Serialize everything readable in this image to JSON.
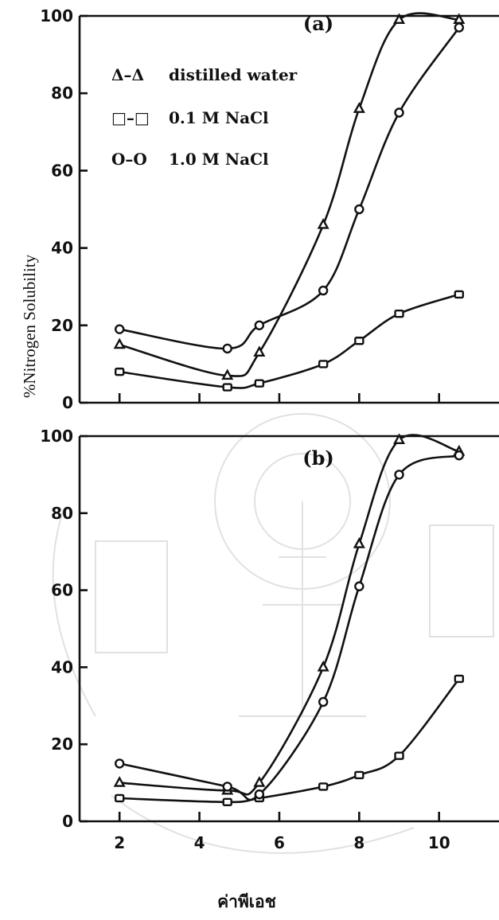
{
  "figure": {
    "ylabel": "%Nitrogen Solubility",
    "xlabel": "ค่าพีเอช"
  },
  "legend": [
    {
      "symbol": "Δ–Δ",
      "label": "distilled water",
      "marker": "triangle"
    },
    {
      "symbol": "□–□",
      "label": "0.1 M NaCl",
      "marker": "square"
    },
    {
      "symbol": "O–O",
      "label": "1.0 M NaCl",
      "marker": "circle"
    }
  ],
  "chart_data": [
    {
      "type": "line",
      "panel": "(a)",
      "xlim": [
        1,
        11.5
      ],
      "ylim": [
        0,
        100
      ],
      "yticks": [
        "0",
        "20",
        "40",
        "60",
        "80",
        "100"
      ],
      "xticks": [
        2,
        4,
        6,
        8,
        10
      ],
      "series": [
        {
          "name": "distilled water",
          "marker": "triangle",
          "points": [
            [
              2,
              15
            ],
            [
              4.7,
              7
            ],
            [
              5.5,
              13
            ],
            [
              7.1,
              46
            ],
            [
              8,
              76
            ],
            [
              9,
              99
            ],
            [
              10.5,
              99
            ]
          ]
        },
        {
          "name": "0.1 M NaCl",
          "marker": "square",
          "points": [
            [
              2,
              8
            ],
            [
              4.7,
              4
            ],
            [
              5.5,
              5
            ],
            [
              7.1,
              10
            ],
            [
              8,
              16
            ],
            [
              9,
              23
            ],
            [
              10.5,
              28
            ]
          ]
        },
        {
          "name": "1.0 M NaCl",
          "marker": "circle",
          "points": [
            [
              2,
              19
            ],
            [
              4.7,
              14
            ],
            [
              5.5,
              20
            ],
            [
              7.1,
              29
            ],
            [
              8,
              50
            ],
            [
              9,
              75
            ],
            [
              10.5,
              97
            ]
          ]
        }
      ]
    },
    {
      "type": "line",
      "panel": "(b)",
      "xlim": [
        1,
        11.5
      ],
      "ylim": [
        0,
        100
      ],
      "yticks": [
        "0",
        "20",
        "40",
        "60",
        "80",
        "100"
      ],
      "xticks": [
        "2",
        "4",
        "6",
        "8",
        "10"
      ],
      "series": [
        {
          "name": "distilled water",
          "marker": "triangle",
          "points": [
            [
              2,
              10
            ],
            [
              4.7,
              8
            ],
            [
              5.5,
              10
            ],
            [
              7.1,
              40
            ],
            [
              8,
              72
            ],
            [
              9,
              99
            ],
            [
              10.5,
              96
            ]
          ]
        },
        {
          "name": "0.1 M NaCl",
          "marker": "square",
          "points": [
            [
              2,
              6
            ],
            [
              4.7,
              5
            ],
            [
              5.5,
              6
            ],
            [
              7.1,
              9
            ],
            [
              8,
              12
            ],
            [
              9,
              17
            ],
            [
              10.5,
              37
            ]
          ]
        },
        {
          "name": "1.0 M NaCl",
          "marker": "circle",
          "points": [
            [
              2,
              15
            ],
            [
              4.7,
              9
            ],
            [
              5.5,
              7
            ],
            [
              7.1,
              31
            ],
            [
              8,
              61
            ],
            [
              9,
              90
            ],
            [
              10.5,
              95
            ]
          ]
        }
      ]
    }
  ]
}
